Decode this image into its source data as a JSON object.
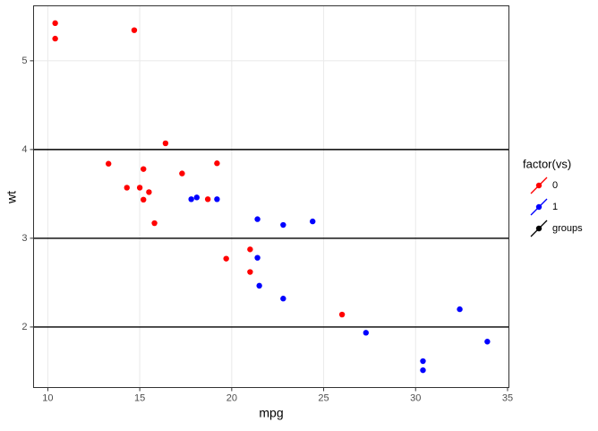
{
  "chart_data": {
    "type": "scatter",
    "x_label": "mpg",
    "y_label": "wt",
    "xlim": [
      9.225,
      35.075
    ],
    "ylim": [
      1.3175,
      5.6195
    ],
    "xticks": [
      10,
      15,
      20,
      25,
      30,
      35
    ],
    "yticks": [
      2,
      3,
      4,
      5
    ],
    "grid": true,
    "legend_title": "factor(vs)",
    "legend_position": "right",
    "series": [
      {
        "name": "0",
        "color": "#ff0000",
        "x": [
          21.0,
          21.0,
          18.7,
          14.3,
          16.4,
          17.3,
          15.2,
          10.4,
          10.4,
          14.7,
          15.5,
          15.2,
          13.3,
          19.2,
          26.0,
          15.8,
          19.7,
          15.0
        ],
        "values": [
          2.62,
          2.875,
          3.44,
          3.57,
          4.07,
          3.73,
          3.78,
          5.25,
          5.424,
          5.345,
          3.52,
          3.435,
          3.84,
          3.845,
          2.14,
          3.17,
          2.77,
          3.57
        ]
      },
      {
        "name": "1",
        "color": "#0000ff",
        "x": [
          22.8,
          21.4,
          18.1,
          24.4,
          22.8,
          19.2,
          17.8,
          32.4,
          30.4,
          33.9,
          21.5,
          27.3,
          30.4,
          21.4
        ],
        "values": [
          2.32,
          3.215,
          3.46,
          3.19,
          3.15,
          3.44,
          3.44,
          2.2,
          1.615,
          1.835,
          2.465,
          1.935,
          1.513,
          2.78
        ]
      }
    ],
    "hlines": {
      "name": "groups",
      "color": "#000000",
      "values": [
        2,
        3,
        4
      ]
    }
  }
}
